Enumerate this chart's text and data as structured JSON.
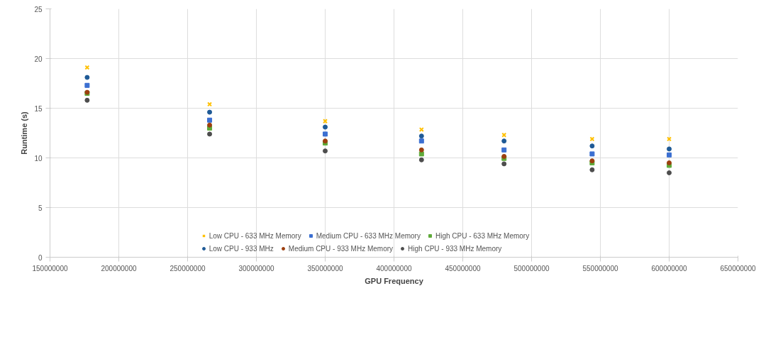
{
  "chart_data": {
    "type": "scatter",
    "xlabel": "GPU Frequency",
    "ylabel": "Runtime (s)",
    "x": [
      177000000,
      266000000,
      350000000,
      420000000,
      480000000,
      544000000,
      600000000
    ],
    "series": [
      {
        "name": "Low CPU - 633 MHz Memory",
        "color": "#ffc000",
        "marker": "cross",
        "values": [
          19.1,
          15.4,
          13.7,
          12.85,
          12.3,
          11.9,
          11.9
        ]
      },
      {
        "name": "Medium CPU - 633 MHz Memory",
        "color": "#3b6fd1",
        "marker": "square",
        "values": [
          17.3,
          13.8,
          12.4,
          11.7,
          10.8,
          10.4,
          10.3
        ]
      },
      {
        "name": "High CPU - 633 MHz Memory",
        "color": "#5faa3a",
        "marker": "square",
        "values": [
          16.5,
          13.0,
          11.5,
          10.4,
          9.95,
          9.5,
          9.25
        ]
      },
      {
        "name": "Low CPU - 933 MHz",
        "color": "#1f5a96",
        "marker": "circle",
        "values": [
          18.1,
          14.6,
          13.1,
          12.2,
          11.7,
          11.2,
          10.9
        ]
      },
      {
        "name": "Medium CPU - 933 MHz Memory",
        "color": "#9c3f0f",
        "marker": "circle",
        "values": [
          16.6,
          13.3,
          11.7,
          10.8,
          10.15,
          9.7,
          9.5
        ]
      },
      {
        "name": "High CPU - 933 MHz Memory",
        "color": "#4d4d4d",
        "marker": "circle",
        "values": [
          15.8,
          12.4,
          10.7,
          9.8,
          9.4,
          8.8,
          8.5
        ]
      }
    ],
    "xlim": [
      150000000,
      650000000
    ],
    "xticks": [
      150000000,
      200000000,
      250000000,
      300000000,
      350000000,
      400000000,
      450000000,
      500000000,
      550000000,
      600000000,
      650000000
    ],
    "ylim": [
      0,
      25
    ],
    "yticks": [
      0,
      5,
      10,
      15,
      20,
      25
    ],
    "grid": true,
    "legend": "bottom"
  }
}
